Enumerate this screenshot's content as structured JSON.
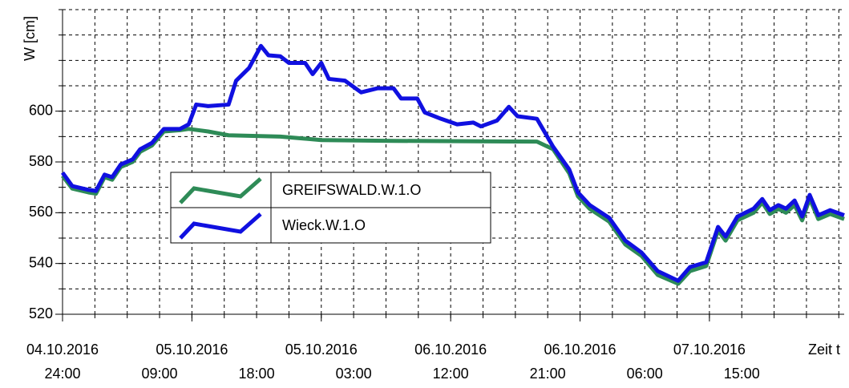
{
  "chart_data": {
    "type": "line",
    "ylabel": "W [cm]",
    "xlabel": "Zeit t",
    "ylim": [
      520,
      640
    ],
    "yticks": [
      520,
      540,
      560,
      580,
      600
    ],
    "ygrid": [
      530,
      540,
      550,
      560,
      570,
      580,
      590,
      600,
      610,
      620,
      630,
      640
    ],
    "xlim": [
      0,
      72.5
    ],
    "xticks_date": [
      {
        "value": 0,
        "label": "04.10.2016"
      },
      {
        "value": 12,
        "label": "05.10.2016"
      },
      {
        "value": 24,
        "label": "05.10.2016"
      },
      {
        "value": 36,
        "label": "06.10.2016"
      },
      {
        "value": 48,
        "label": "06.10.2016"
      },
      {
        "value": 60,
        "label": "07.10.2016"
      }
    ],
    "xticks_time": [
      {
        "value": 0,
        "label": "24:00"
      },
      {
        "value": 9,
        "label": "09:00"
      },
      {
        "value": 18,
        "label": "18:00"
      },
      {
        "value": 27,
        "label": "03:00"
      },
      {
        "value": 36,
        "label": "12:00"
      },
      {
        "value": 45,
        "label": "21:00"
      },
      {
        "value": 54,
        "label": "06:00"
      },
      {
        "value": 63,
        "label": "15:00"
      }
    ],
    "xgrid": [
      0,
      3,
      6,
      9,
      12,
      15,
      18,
      21,
      24,
      27,
      30,
      33,
      36,
      39,
      42,
      45,
      48,
      51,
      54,
      57,
      60,
      63,
      66,
      69,
      72
    ],
    "grid": true,
    "series": [
      {
        "name": "GREIFSWALD.W.1.O",
        "color": "#2e8b57",
        "x": [
          0,
          0.9,
          2.4,
          3.1,
          3.9,
          4.6,
          5.4,
          6.5,
          7.2,
          8.3,
          9.4,
          10.9,
          11.7,
          13.5,
          15.4,
          20.2,
          24,
          30.7,
          44,
          45.5,
          47,
          47.8,
          48.9,
          50.7,
          52.2,
          53.7,
          55.2,
          57.1,
          58.2,
          59.7,
          60.8,
          61.5,
          62.6,
          64.1,
          64.9,
          65.6,
          66.4,
          67.1,
          67.9,
          68.6,
          69.3,
          70.1,
          71.2,
          72.5
        ],
        "values": [
          574.5,
          569.5,
          568,
          567.5,
          574,
          573,
          578,
          580,
          584,
          586.5,
          592,
          592.5,
          593,
          592,
          590.5,
          590,
          588.6,
          588.3,
          588,
          585,
          575.5,
          566.5,
          561.5,
          556.5,
          547.5,
          543,
          535.5,
          532,
          537,
          539,
          553,
          549,
          557,
          560,
          564,
          559.5,
          561.5,
          560,
          563,
          557,
          565.5,
          557.5,
          559.5,
          557.5
        ]
      },
      {
        "name": "Wieck.W.1.O",
        "color": "#1010e0",
        "x": [
          0,
          0.9,
          2.4,
          3.1,
          3.9,
          4.6,
          5.4,
          6.5,
          7.2,
          8.3,
          9.4,
          10.9,
          11.7,
          12.4,
          13.5,
          15.4,
          16.1,
          17.3,
          18.4,
          19.1,
          20.2,
          21,
          22.5,
          23.2,
          24,
          24.7,
          26.2,
          27.7,
          29.2,
          30.7,
          31.4,
          32.9,
          33.6,
          35.1,
          36.6,
          38.1,
          38.8,
          40.3,
          41.4,
          42.2,
          44,
          45.5,
          47,
          47.8,
          48.9,
          50.7,
          52.2,
          53.7,
          55.2,
          57.1,
          58.2,
          59.7,
          60.8,
          61.5,
          62.6,
          64.1,
          64.9,
          65.6,
          66.4,
          67.1,
          67.9,
          68.6,
          69.3,
          70.1,
          71.2,
          72.5
        ],
        "values": [
          575.8,
          570.5,
          569,
          568.6,
          575,
          574,
          579,
          581,
          585,
          587.5,
          593,
          593,
          594.8,
          602.6,
          602,
          602.6,
          612,
          617,
          625.7,
          622,
          621.6,
          619,
          619,
          614.6,
          619,
          612.7,
          612,
          607.4,
          609,
          609,
          605,
          605,
          599.5,
          597,
          594.8,
          595.5,
          594,
          596.3,
          601.7,
          598,
          597,
          586,
          577,
          568,
          563,
          558,
          549,
          544.3,
          537,
          533.2,
          538.6,
          540.5,
          554.4,
          550.6,
          558.5,
          561.6,
          565.4,
          561,
          563,
          561.6,
          564.8,
          558.5,
          567,
          559,
          561,
          559
        ]
      }
    ]
  }
}
